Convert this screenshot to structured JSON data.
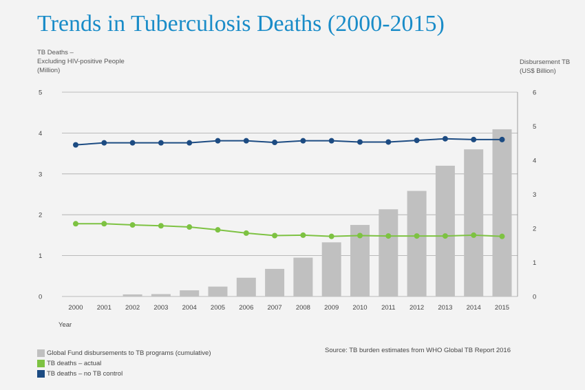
{
  "title": "Trends in Tuberculosis Deaths (2000-2015)",
  "colors": {
    "title": "#1a8cc8",
    "bars": "#c0c0c0",
    "actual": "#7dc242",
    "no_control": "#1c4b82",
    "grid": "#a8a8a8"
  },
  "chart_data": {
    "type": "bar",
    "title": "Trends in Tuberculosis Deaths (2000-2015)",
    "xlabel": "Year",
    "ylabel_left_lines": [
      "TB Deaths –",
      "Excluding HIV-positive People",
      "(Million)"
    ],
    "ylabel_right_lines": [
      "Disbursement TB",
      "(US$ Billion)"
    ],
    "ylim_left": [
      0,
      5
    ],
    "ylim_right": [
      0,
      6
    ],
    "yticks_left": [
      "0",
      "1",
      "2",
      "3",
      "4",
      "5"
    ],
    "yticks_right": [
      "0",
      "1",
      "2",
      "3",
      "4",
      "5",
      "6"
    ],
    "grid": true,
    "legend_position": "bottom-left",
    "categories": [
      "2000",
      "2001",
      "2002",
      "2003",
      "2004",
      "2005",
      "2006",
      "2007",
      "2008",
      "2009",
      "2010",
      "2011",
      "2012",
      "2013",
      "2014",
      "2015"
    ],
    "series": [
      {
        "name": "Global Fund disbursements to TB programs (cumulative)",
        "type": "bar",
        "axis": "right",
        "values": [
          0,
          0,
          0.06,
          0.07,
          0.18,
          0.29,
          0.55,
          0.81,
          1.14,
          1.59,
          2.1,
          2.56,
          3.1,
          3.84,
          4.32,
          4.91
        ]
      },
      {
        "name": "TB deaths – actual",
        "type": "line",
        "axis": "left",
        "values": [
          1.78,
          1.78,
          1.75,
          1.73,
          1.7,
          1.63,
          1.55,
          1.49,
          1.5,
          1.47,
          1.49,
          1.48,
          1.48,
          1.48,
          1.5,
          1.47
        ]
      },
      {
        "name": "TB deaths – no TB control",
        "type": "line",
        "axis": "left",
        "values": [
          3.71,
          3.76,
          3.76,
          3.76,
          3.76,
          3.81,
          3.81,
          3.77,
          3.81,
          3.81,
          3.78,
          3.78,
          3.82,
          3.86,
          3.84,
          3.84
        ]
      }
    ]
  },
  "source": "Source: TB burden estimates from WHO Global TB Report 2016"
}
